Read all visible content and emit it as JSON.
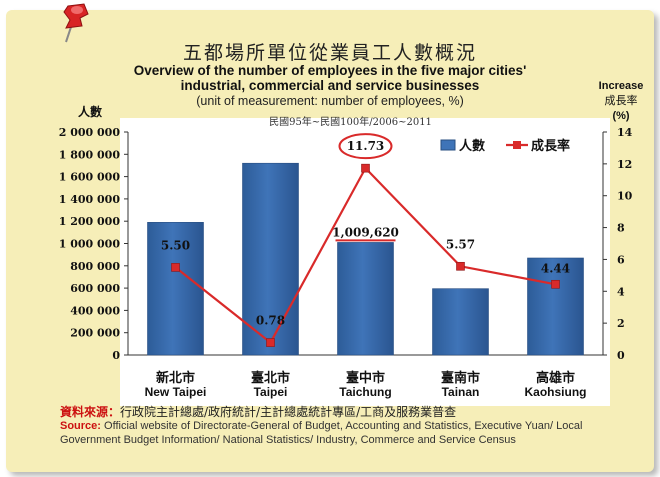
{
  "title_zh": "五都場所單位從業員工人數概況",
  "title_en_line1": "Overview of the number of employees in the five major cities'",
  "title_en_line2": "industrial, commercial and service businesses",
  "unit_text": "(unit of measurement: number of employees, %)",
  "period": "民國95年~民國100年/2006~2011",
  "source_label_zh": "資料來源：",
  "source_text_zh": "行政院主計總處/政府統計/主計總處統計專區/工商及服務業普查",
  "source_label_en": "Source:",
  "source_text_en": " Official website of Directorate-General of Budget, Accounting and Statistics, Executive Yuan/ Local Government Budget Information/ National Statistics/ Industry, Commerce and Service Census",
  "colors": {
    "bar": "#3f74b8",
    "line": "#d92a2a",
    "highlight_circle": "#d92a2a",
    "background": "#f6eeb8"
  },
  "chart_data": {
    "type": "bar+line",
    "categories_zh": [
      "新北市",
      "臺北市",
      "臺中市",
      "臺南市",
      "高雄市"
    ],
    "categories_en": [
      "New Taipei",
      "Taipei",
      "Taichung",
      "Tainan",
      "Kaohsiung"
    ],
    "series": [
      {
        "name": "人數",
        "type": "bar",
        "axis": "left",
        "values": [
          1190000,
          1720000,
          1009620,
          595000,
          870000
        ],
        "data_labels": [
          "",
          "",
          "1,009,620",
          "",
          ""
        ]
      },
      {
        "name": "成長率",
        "type": "line",
        "axis": "right",
        "values": [
          5.5,
          0.78,
          11.73,
          5.57,
          4.44
        ],
        "data_labels": [
          "5.50",
          "0.78",
          "11.73",
          "5.57",
          "4.44"
        ]
      }
    ],
    "left_axis": {
      "label": "人數",
      "ticks": [
        "0",
        "200 000",
        "400 000",
        "600 000",
        "800 000",
        "1 000 000",
        "1 200 000",
        "1 400 000",
        "1 600 000",
        "1 800 000",
        "2 000 000"
      ],
      "range": [
        0,
        2000000
      ]
    },
    "right_axis": {
      "label_en": "Increase",
      "label_zh": "成長率",
      "label_unit": "(%)",
      "ticks": [
        "0",
        "2",
        "4",
        "6",
        "8",
        "10",
        "12",
        "14"
      ],
      "range": [
        0,
        14
      ]
    },
    "legend_placement": "top-right",
    "highlighted_point": "11.73",
    "grid": false
  }
}
